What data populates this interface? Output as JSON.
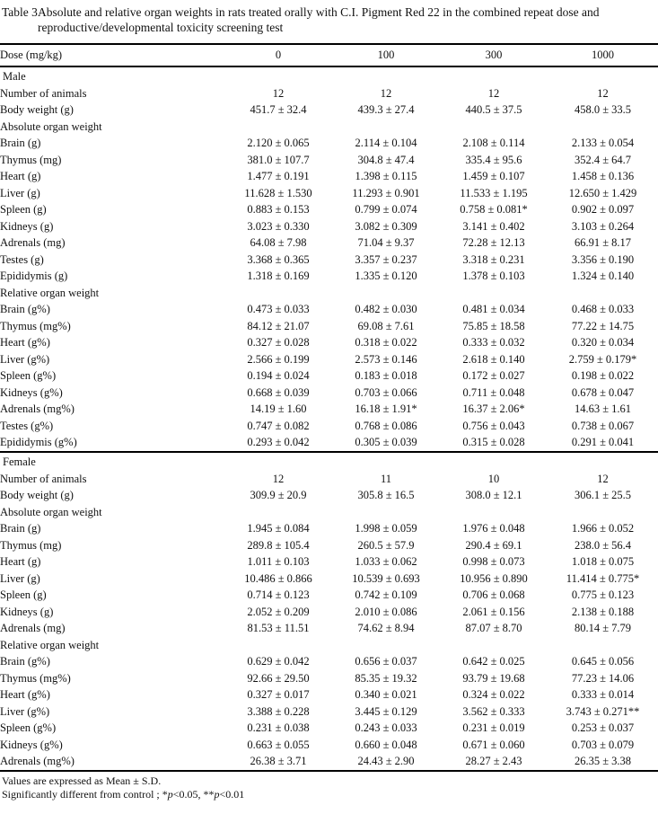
{
  "title": {
    "label": "Table 3",
    "text": "Absolute and relative organ weights in rats treated orally with C.I. Pigment Red 22 in the combined repeat dose and reproductive/developmental toxicity screening test"
  },
  "table": {
    "header": {
      "label": "Dose (mg/kg)",
      "doses": [
        "0",
        "100",
        "300",
        "1000"
      ]
    },
    "sections": [
      {
        "name": "Male",
        "rows": [
          {
            "label": "Number of animals",
            "indent": 1,
            "values": [
              "12",
              "12",
              "12",
              "12"
            ]
          },
          {
            "label": "Body weight (g)",
            "indent": 1,
            "values": [
              "451.7 ± 32.4",
              "439.3 ± 27.4",
              "440.5 ± 37.5",
              "458.0 ± 33.5"
            ]
          },
          {
            "label": "Absolute organ weight",
            "indent": 1,
            "values": [
              "",
              "",
              "",
              ""
            ]
          },
          {
            "label": "Brain (g)",
            "indent": 2,
            "values": [
              "2.120 ± 0.065",
              "2.114 ± 0.104",
              "2.108 ± 0.114",
              "2.133 ± 0.054"
            ]
          },
          {
            "label": "Thymus (mg)",
            "indent": 2,
            "values": [
              "381.0 ± 107.7",
              "304.8 ± 47.4",
              "335.4 ± 95.6",
              "352.4 ± 64.7"
            ]
          },
          {
            "label": "Heart (g)",
            "indent": 2,
            "values": [
              "1.477 ± 0.191",
              "1.398 ± 0.115",
              "1.459 ± 0.107",
              "1.458 ± 0.136"
            ]
          },
          {
            "label": "Liver (g)",
            "indent": 2,
            "values": [
              "11.628 ± 1.530",
              "11.293 ± 0.901",
              "11.533 ± 1.195",
              "12.650 ± 1.429"
            ]
          },
          {
            "label": "Spleen (g)",
            "indent": 2,
            "values": [
              "0.883 ± 0.153",
              "0.799 ± 0.074",
              "0.758 ± 0.081*",
              "0.902 ± 0.097"
            ]
          },
          {
            "label": "Kidneys (g)",
            "indent": 2,
            "values": [
              "3.023 ± 0.330",
              "3.082 ± 0.309",
              "3.141 ± 0.402",
              "3.103 ± 0.264"
            ]
          },
          {
            "label": "Adrenals (mg)",
            "indent": 2,
            "values": [
              "64.08 ± 7.98",
              "71.04 ± 9.37",
              "72.28 ± 12.13",
              "66.91 ± 8.17"
            ]
          },
          {
            "label": "Testes (g)",
            "indent": 2,
            "values": [
              "3.368 ± 0.365",
              "3.357 ± 0.237",
              "3.318 ± 0.231",
              "3.356 ± 0.190"
            ]
          },
          {
            "label": "Epididymis (g)",
            "indent": 2,
            "values": [
              "1.318 ± 0.169",
              "1.335 ± 0.120",
              "1.378 ± 0.103",
              "1.324 ± 0.140"
            ]
          },
          {
            "label": "Relative organ weight",
            "indent": 1,
            "values": [
              "",
              "",
              "",
              ""
            ]
          },
          {
            "label": "Brain (g%)",
            "indent": 2,
            "values": [
              "0.473 ± 0.033",
              "0.482 ± 0.030",
              "0.481 ± 0.034",
              "0.468 ± 0.033"
            ]
          },
          {
            "label": "Thymus (mg%)",
            "indent": 2,
            "values": [
              "84.12 ± 21.07",
              "69.08 ± 7.61",
              "75.85 ± 18.58",
              "77.22 ± 14.75"
            ]
          },
          {
            "label": "Heart (g%)",
            "indent": 2,
            "values": [
              "0.327 ± 0.028",
              "0.318 ± 0.022",
              "0.333 ± 0.032",
              "0.320 ± 0.034"
            ]
          },
          {
            "label": "Liver (g%)",
            "indent": 2,
            "values": [
              "2.566 ± 0.199",
              "2.573 ± 0.146",
              "2.618 ± 0.140",
              "2.759 ± 0.179*"
            ]
          },
          {
            "label": "Spleen (g%)",
            "indent": 2,
            "values": [
              "0.194 ± 0.024",
              "0.183 ± 0.018",
              "0.172 ± 0.027",
              "0.198 ± 0.022"
            ]
          },
          {
            "label": "Kidneys (g%)",
            "indent": 2,
            "values": [
              "0.668 ± 0.039",
              "0.703 ± 0.066",
              "0.711 ± 0.048",
              "0.678 ± 0.047"
            ]
          },
          {
            "label": "Adrenals (mg%)",
            "indent": 2,
            "values": [
              "14.19 ± 1.60",
              "16.18 ± 1.91*",
              "16.37 ± 2.06*",
              "14.63 ± 1.61"
            ]
          },
          {
            "label": "Testes (g%)",
            "indent": 2,
            "values": [
              "0.747 ± 0.082",
              "0.768 ± 0.086",
              "0.756 ± 0.043",
              "0.738 ± 0.067"
            ]
          },
          {
            "label": "Epididymis (g%)",
            "indent": 2,
            "values": [
              "0.293 ± 0.042",
              "0.305 ± 0.039",
              "0.315 ± 0.028",
              "0.291 ± 0.041"
            ]
          }
        ]
      },
      {
        "name": "Female",
        "rows": [
          {
            "label": "Number of animals",
            "indent": 1,
            "values": [
              "12",
              "11",
              "10",
              "12"
            ]
          },
          {
            "label": "Body weight (g)",
            "indent": 1,
            "values": [
              "309.9 ± 20.9",
              "305.8 ± 16.5",
              "308.0 ± 12.1",
              "306.1 ± 25.5"
            ]
          },
          {
            "label": "Absolute organ weight",
            "indent": 1,
            "values": [
              "",
              "",
              "",
              ""
            ]
          },
          {
            "label": "Brain (g)",
            "indent": 2,
            "values": [
              "1.945 ± 0.084",
              "1.998 ± 0.059",
              "1.976 ± 0.048",
              "1.966 ± 0.052"
            ]
          },
          {
            "label": "Thymus (mg)",
            "indent": 2,
            "values": [
              "289.8 ± 105.4",
              "260.5 ± 57.9",
              "290.4 ± 69.1",
              "238.0 ± 56.4"
            ]
          },
          {
            "label": "Heart (g)",
            "indent": 2,
            "values": [
              "1.011 ± 0.103",
              "1.033 ± 0.062",
              "0.998 ± 0.073",
              "1.018 ± 0.075"
            ]
          },
          {
            "label": "Liver (g)",
            "indent": 2,
            "values": [
              "10.486 ± 0.866",
              "10.539 ± 0.693",
              "10.956 ± 0.890",
              "11.414 ± 0.775*"
            ]
          },
          {
            "label": "Spleen (g)",
            "indent": 2,
            "values": [
              "0.714 ± 0.123",
              "0.742 ± 0.109",
              "0.706 ± 0.068",
              "0.775 ± 0.123"
            ]
          },
          {
            "label": "Kidneys (g)",
            "indent": 2,
            "values": [
              "2.052 ± 0.209",
              "2.010 ± 0.086",
              "2.061 ± 0.156",
              "2.138 ± 0.188"
            ]
          },
          {
            "label": "Adrenals (mg)",
            "indent": 2,
            "values": [
              "81.53 ± 11.51",
              "74.62 ± 8.94",
              "87.07 ± 8.70",
              "80.14 ± 7.79"
            ]
          },
          {
            "label": "Relative organ weight",
            "indent": 1,
            "values": [
              "",
              "",
              "",
              ""
            ]
          },
          {
            "label": "Brain (g%)",
            "indent": 2,
            "values": [
              "0.629 ± 0.042",
              "0.656 ± 0.037",
              "0.642 ± 0.025",
              "0.645 ± 0.056"
            ]
          },
          {
            "label": "Thymus (mg%)",
            "indent": 2,
            "values": [
              "92.66 ± 29.50",
              "85.35 ± 19.32",
              "93.79 ± 19.68",
              "77.23 ± 14.06"
            ]
          },
          {
            "label": "Heart (g%)",
            "indent": 2,
            "values": [
              "0.327 ± 0.017",
              "0.340 ± 0.021",
              "0.324 ± 0.022",
              "0.333 ± 0.014"
            ]
          },
          {
            "label": "Liver (g%)",
            "indent": 2,
            "values": [
              "3.388 ± 0.228",
              "3.445 ± 0.129",
              "3.562 ± 0.333",
              "3.743 ± 0.271**"
            ]
          },
          {
            "label": "Spleen (g%)",
            "indent": 2,
            "values": [
              "0.231 ± 0.038",
              "0.243 ± 0.033",
              "0.231 ± 0.019",
              "0.253 ± 0.037"
            ]
          },
          {
            "label": "Kidneys (g%)",
            "indent": 2,
            "values": [
              "0.663 ± 0.055",
              "0.660 ± 0.048",
              "0.671 ± 0.060",
              "0.703 ± 0.079"
            ]
          },
          {
            "label": "Adrenals (mg%)",
            "indent": 2,
            "values": [
              "26.38 ± 3.71",
              "24.43 ± 2.90",
              "28.27 ± 2.43",
              "26.35 ± 3.38"
            ]
          }
        ]
      }
    ]
  },
  "footnotes": {
    "mean_sd": "Values are expressed as Mean ± S.D.",
    "significance_parts": [
      "Significantly different from control ; *",
      "p",
      "<0.05, **",
      "p",
      "<0.01"
    ]
  }
}
